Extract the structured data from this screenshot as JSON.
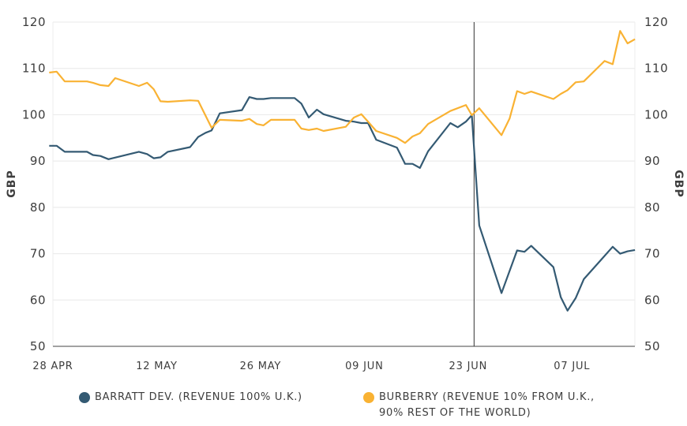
{
  "chart_data": {
    "type": "line",
    "title": "",
    "xlabel": "",
    "ylabel_left": "GBP",
    "ylabel_right": "GBP",
    "x_unit": "days since 28 APR",
    "xlim": [
      -1,
      79
    ],
    "ylim": [
      50,
      120
    ],
    "yticks": [
      50,
      60,
      70,
      80,
      90,
      100,
      110,
      120
    ],
    "ytick_labels": [
      "50",
      "60",
      "70",
      "80",
      "90",
      "100",
      "110",
      "120"
    ],
    "xticks": [
      0,
      14,
      28,
      42,
      56,
      70
    ],
    "xtick_labels": [
      "28 APR",
      "12 MAY",
      "26 MAY",
      "09 JUN",
      "23 JUN",
      "07 JUL"
    ],
    "grid": true,
    "annotation": {
      "type": "vertical-line",
      "x": 56.8
    },
    "legend_position": "bottom",
    "series": [
      {
        "name": "BARRATT DEV. (REVENUE 100% U.K.)",
        "color": "#345a73",
        "x": [
          -0.5,
          0.5,
          1.6,
          4.6,
          5.4,
          6.4,
          7.5,
          11.6,
          12.7,
          13.6,
          14.5,
          15.5,
          18.5,
          19.6,
          20.6,
          21.4,
          22.5,
          25.5,
          26.5,
          27.5,
          28.4,
          29.4,
          32.6,
          33.5,
          34.5,
          35.6,
          36.5,
          39.5,
          40.6,
          41.6,
          42.5,
          43.6,
          46.4,
          47.5,
          48.5,
          49.5,
          50.6,
          53.6,
          54.6,
          55.7,
          56.5,
          57.5,
          60.5,
          62.6,
          63.6,
          64.5,
          67.5,
          68.5,
          69.4,
          70.5,
          71.6,
          75.5,
          76.5,
          77.5,
          78.5
        ],
        "values": [
          93.3,
          93.3,
          92.0,
          92.0,
          91.3,
          91.1,
          90.4,
          92.0,
          91.5,
          90.6,
          90.8,
          92.0,
          93.0,
          95.2,
          96.1,
          96.6,
          100.3,
          101.0,
          103.8,
          103.4,
          103.4,
          103.6,
          103.6,
          102.4,
          99.4,
          101.1,
          100.1,
          98.7,
          98.5,
          98.2,
          98.2,
          94.6,
          92.9,
          89.4,
          89.4,
          88.5,
          92.1,
          98.2,
          97.3,
          98.5,
          99.9,
          76.1,
          61.5,
          70.7,
          70.4,
          71.7,
          67.1,
          60.6,
          57.7,
          60.4,
          64.5,
          71.5,
          70.0,
          70.5,
          70.8
        ]
      },
      {
        "name": "BURBERRY (REVENUE 10% FROM U.K., 90% REST OF THE WORLD)",
        "color": "#f9b233",
        "x": [
          -0.5,
          0.5,
          1.6,
          4.6,
          5.4,
          6.4,
          7.5,
          8.4,
          11.6,
          12.7,
          13.6,
          14.5,
          15.5,
          18.5,
          19.6,
          21.4,
          22.5,
          25.5,
          26.5,
          27.5,
          28.4,
          29.4,
          32.6,
          33.5,
          34.5,
          35.6,
          36.5,
          39.5,
          40.6,
          41.6,
          42.5,
          43.6,
          46.4,
          47.5,
          48.5,
          49.5,
          50.6,
          53.6,
          55.7,
          56.5,
          57.5,
          60.5,
          61.6,
          62.6,
          63.6,
          64.5,
          67.5,
          68.5,
          69.4,
          70.5,
          71.6,
          74.4,
          75.5,
          76.5,
          77.5,
          78.5
        ],
        "values": [
          109.1,
          109.3,
          107.2,
          107.2,
          106.9,
          106.4,
          106.2,
          107.9,
          106.2,
          106.9,
          105.5,
          102.9,
          102.8,
          103.1,
          103.0,
          97.2,
          98.9,
          98.7,
          99.1,
          98.0,
          97.7,
          98.9,
          98.9,
          97.0,
          96.7,
          97.0,
          96.5,
          97.4,
          99.4,
          100.1,
          98.5,
          96.5,
          95.0,
          93.9,
          95.3,
          96.0,
          98.0,
          100.8,
          102.1,
          99.9,
          101.4,
          95.6,
          99.2,
          105.1,
          104.5,
          105.0,
          103.4,
          104.5,
          105.3,
          107.0,
          107.2,
          111.6,
          110.9,
          118.1,
          115.4,
          116.3
        ]
      }
    ]
  },
  "legend": {
    "items": [
      {
        "label": "BARRATT DEV. (REVENUE 100% U.K.)",
        "color": "#345a73"
      },
      {
        "label_line1": "BURBERRY (REVENUE 10% FROM U.K.,",
        "label_line2": "90% REST OF THE WORLD)",
        "color": "#f9b233"
      }
    ]
  }
}
